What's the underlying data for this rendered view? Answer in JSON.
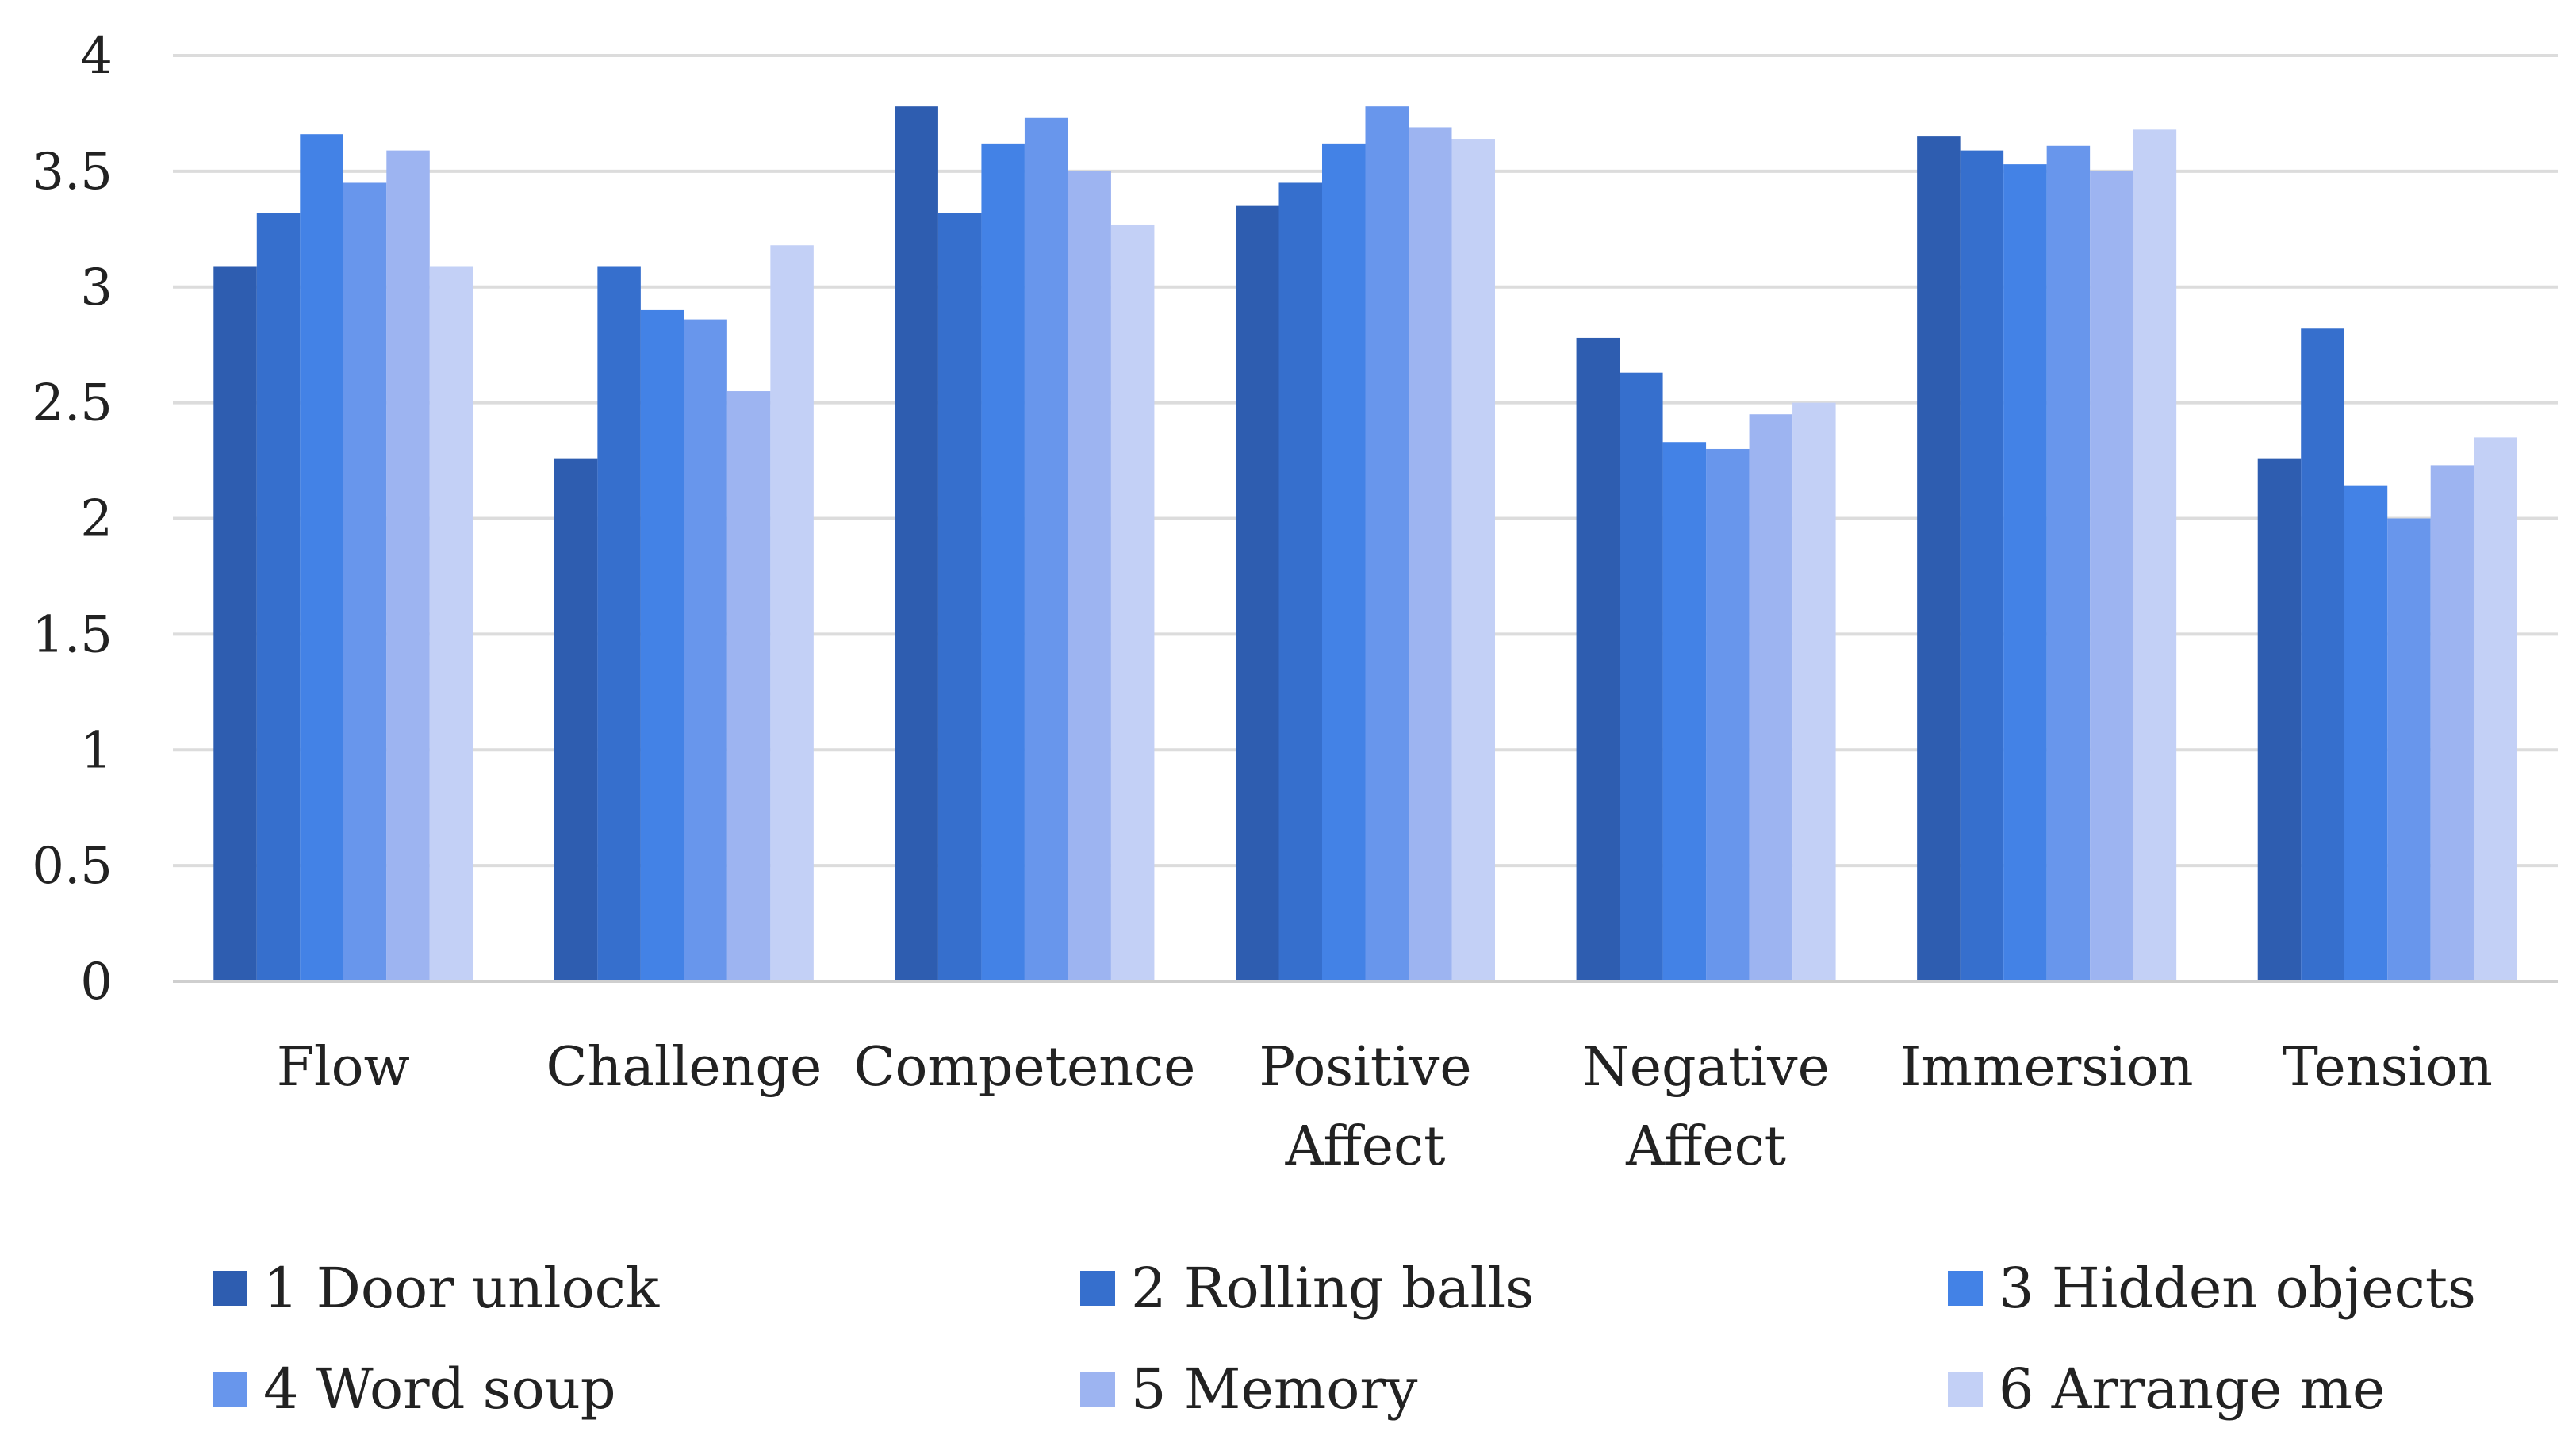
{
  "chart_data": {
    "type": "bar",
    "title": "",
    "xlabel": "",
    "ylabel": "",
    "ylim": [
      0,
      4
    ],
    "yticks": [
      0,
      0.5,
      1,
      1.5,
      2,
      2.5,
      3,
      3.5,
      4
    ],
    "ytick_labels": [
      "0",
      "0.5",
      "1",
      "1.5",
      "2",
      "2.5",
      "3",
      "3.5",
      "4"
    ],
    "grid": true,
    "legend_position": "bottom",
    "categories": [
      [
        "Flow"
      ],
      [
        "Challenge"
      ],
      [
        "Competence"
      ],
      [
        "Positive",
        "Affect"
      ],
      [
        "Negative",
        "Affect"
      ],
      [
        "Immersion"
      ],
      [
        "Tension"
      ]
    ],
    "series": [
      {
        "name": "1 Door unlock",
        "color": "#2E5DB0",
        "values": [
          3.09,
          2.26,
          3.78,
          3.35,
          2.78,
          3.65,
          2.26
        ]
      },
      {
        "name": "2 Rolling balls",
        "color": "#366FCD",
        "values": [
          3.32,
          3.09,
          3.32,
          3.45,
          2.63,
          3.59,
          2.82
        ]
      },
      {
        "name": "3 Hidden objects",
        "color": "#4382E6",
        "values": [
          3.66,
          2.9,
          3.62,
          3.62,
          2.33,
          3.53,
          2.14
        ]
      },
      {
        "name": "4 Word soup",
        "color": "#6896EC",
        "values": [
          3.45,
          2.86,
          3.73,
          3.78,
          2.3,
          3.61,
          2.0
        ]
      },
      {
        "name": "5 Memory",
        "color": "#9DB4F1",
        "values": [
          3.59,
          2.55,
          3.5,
          3.69,
          2.45,
          3.5,
          2.23
        ]
      },
      {
        "name": "6 Arrange me",
        "color": "#C3D0F6",
        "values": [
          3.09,
          3.18,
          3.27,
          3.64,
          2.5,
          3.68,
          2.35
        ]
      }
    ]
  }
}
